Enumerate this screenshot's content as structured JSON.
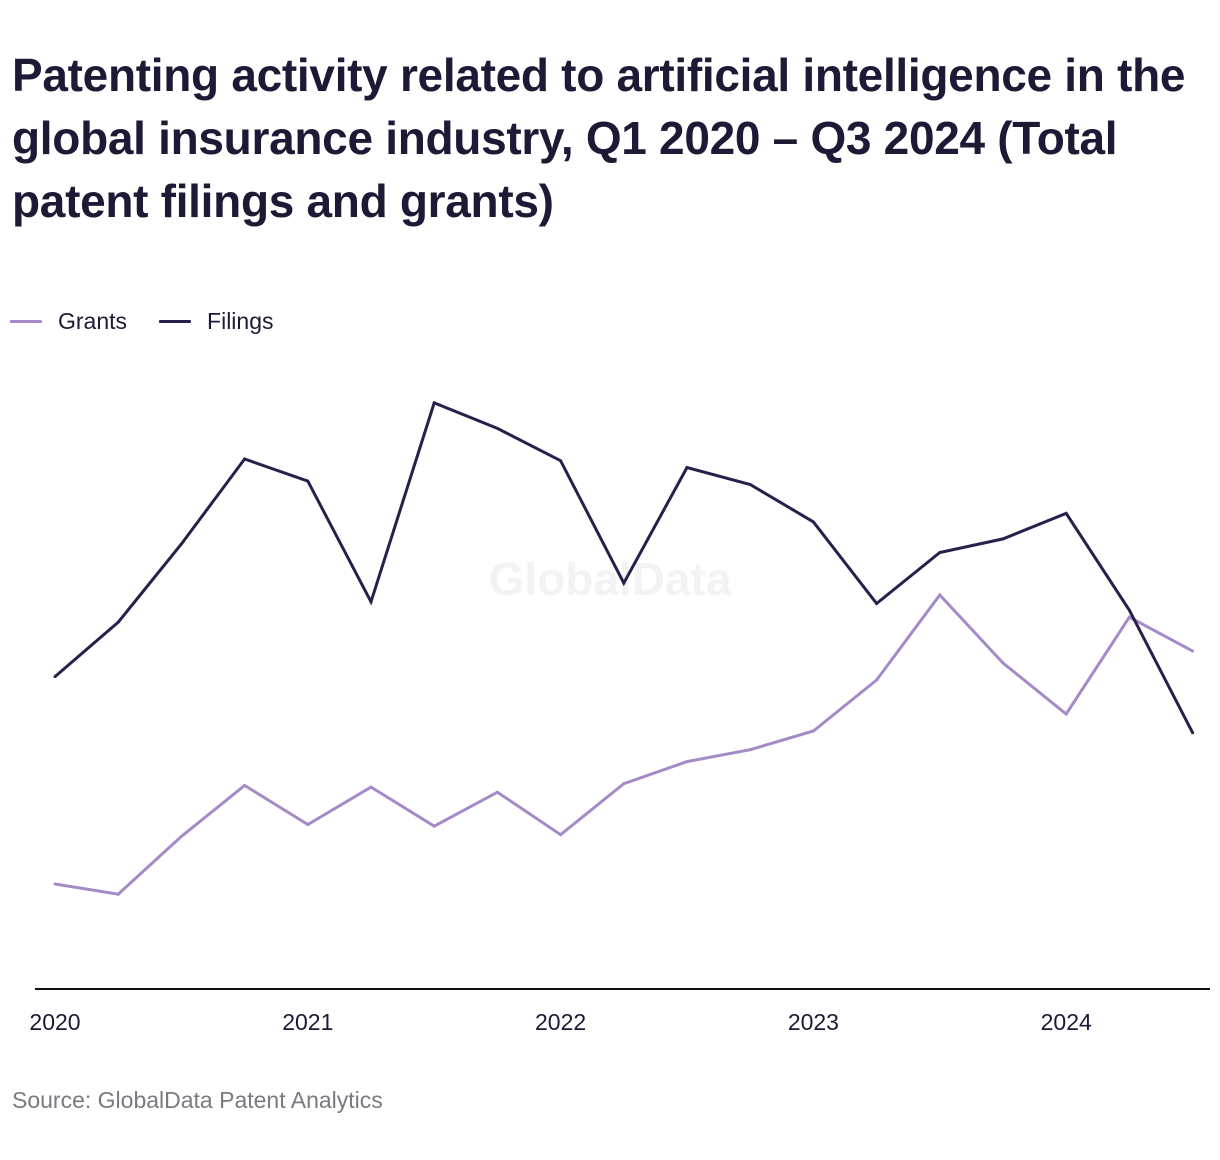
{
  "title": "Patenting activity related to artificial intelligence in the global insurance industry, Q1 2020 – Q3 2024 (Total patent filings and grants)",
  "source": "Source: GlobalData Patent Analytics",
  "watermark": "GlobalData",
  "colors": {
    "grants": "#a48bc7",
    "filings": "#2a1f4a",
    "axis": "#111111",
    "watermark": "#f3f3f3"
  },
  "chart_data": {
    "type": "line",
    "x": [
      "Q1 2020",
      "Q2 2020",
      "Q3 2020",
      "Q4 2020",
      "Q1 2021",
      "Q2 2021",
      "Q3 2021",
      "Q4 2021",
      "Q1 2022",
      "Q2 2022",
      "Q3 2022",
      "Q4 2022",
      "Q1 2023",
      "Q2 2023",
      "Q3 2023",
      "Q4 2023",
      "Q1 2024",
      "Q2 2024",
      "Q3 2024"
    ],
    "x_tick_labels": [
      "2020",
      "2021",
      "2022",
      "2023",
      "2024"
    ],
    "legend_position": "top-left",
    "grid": false,
    "y_axis_visible": false,
    "series": [
      {
        "name": "Grants",
        "values": [
          0.5,
          0.2,
          1.9,
          3.4,
          2.25,
          3.35,
          2.2,
          3.2,
          1.95,
          3.45,
          4.1,
          4.45,
          5.0,
          6.5,
          9.0,
          7.0,
          5.5,
          8.35,
          7.35
        ]
      },
      {
        "name": "Filings",
        "values": [
          6.6,
          8.2,
          10.5,
          13.0,
          12.35,
          8.8,
          14.65,
          13.9,
          12.95,
          9.35,
          12.75,
          12.25,
          11.15,
          8.75,
          10.25,
          10.65,
          11.4,
          8.55,
          4.95
        ]
      }
    ]
  }
}
